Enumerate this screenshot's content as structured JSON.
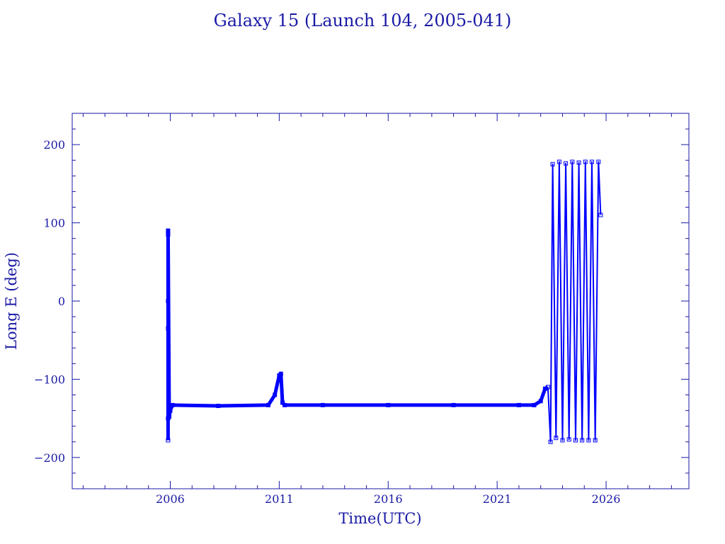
{
  "colors": {
    "axes": "#1a1aa6",
    "series": "#0000ff",
    "background": "#ffffff"
  },
  "chart_data": {
    "type": "line",
    "title": "Galaxy 15 (Launch 104, 2005-041)",
    "xlabel": "Time(UTC)",
    "ylabel": "Long E (deg)",
    "xlim": [
      2001.5,
      2029.8
    ],
    "ylim": [
      -240,
      240
    ],
    "x_ticks": [
      2006,
      2011,
      2016,
      2021,
      2026
    ],
    "x_tick_labels": [
      "2006",
      "2011",
      "2016",
      "2021",
      "2026"
    ],
    "y_ticks": [
      200,
      100,
      0,
      -100,
      -200
    ],
    "y_tick_labels": [
      "200",
      "100",
      "0",
      "−100",
      "−200"
    ],
    "x_minor_step": 1,
    "y_minor_step": 20,
    "marker": "square",
    "series": [
      {
        "x": [
          2005.9,
          2005.9,
          2005.9,
          2005.9,
          2005.9,
          2005.9,
          2005.95,
          2006.0,
          2006.1,
          2008.2,
          2010.5,
          2010.8,
          2011.0,
          2011.08,
          2011.15,
          2011.25,
          2013.0,
          2016.0,
          2019.0,
          2022.0,
          2022.7,
          2023.0,
          2023.2,
          2023.33
        ],
        "y": [
          -178,
          -150,
          -35,
          0,
          85,
          90,
          -148,
          -140,
          -133,
          -134,
          -133,
          -120,
          -95,
          -93,
          -130,
          -133,
          -133,
          -133,
          -133,
          -133,
          -133,
          -128,
          -112,
          -110
        ]
      },
      {
        "x": [
          2023.33,
          2023.45,
          2023.55,
          2023.7,
          2023.85,
          2024.0,
          2024.15,
          2024.3,
          2024.45,
          2024.6,
          2024.75,
          2024.9,
          2025.05,
          2025.2,
          2025.35,
          2025.5,
          2025.65,
          2025.75
        ],
        "y": [
          -110,
          -180,
          175,
          -175,
          178,
          -178,
          176,
          -177,
          178,
          -178,
          177,
          -178,
          178,
          -178,
          178,
          -178,
          178,
          110
        ]
      }
    ]
  }
}
